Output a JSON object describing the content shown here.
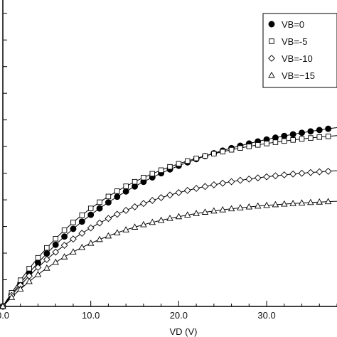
{
  "chart_data": {
    "type": "scatter",
    "title": "",
    "xlabel": "VD (V)",
    "ylabel": "",
    "xlim": [
      0,
      38
    ],
    "ylim": [
      0,
      11.5
    ],
    "x_ticks": [
      0,
      10,
      20,
      30
    ],
    "x_tick_labels": [
      "0.0",
      "10.0",
      "20.0",
      "30.0"
    ],
    "y_ticks": [
      1,
      2,
      3,
      4,
      5,
      6,
      7,
      8,
      9,
      10,
      11
    ],
    "grid": false,
    "legend_position": "top-right",
    "fit_lines": true,
    "marker_x": [
      0,
      1,
      2,
      3,
      4,
      5,
      6,
      7,
      8,
      9,
      10,
      11,
      12,
      13,
      14,
      15,
      16,
      17,
      18,
      19,
      20,
      21,
      22,
      23,
      24,
      25,
      26,
      27,
      28,
      29,
      30,
      31,
      32,
      33,
      34,
      35,
      36,
      37
    ],
    "series": [
      {
        "name": "VB=0",
        "marker": "filled-circle",
        "vmax": 7.4,
        "tau": 16.0
      },
      {
        "name": "VB=-5",
        "marker": "square",
        "vmax": 6.75,
        "tau": 12.7
      },
      {
        "name": "VB=-10",
        "marker": "diamond",
        "vmax": 5.35,
        "tau": 12.5
      },
      {
        "name": "VB=−15",
        "marker": "triangle",
        "vmax": 4.1,
        "tau": 11.6
      }
    ]
  }
}
